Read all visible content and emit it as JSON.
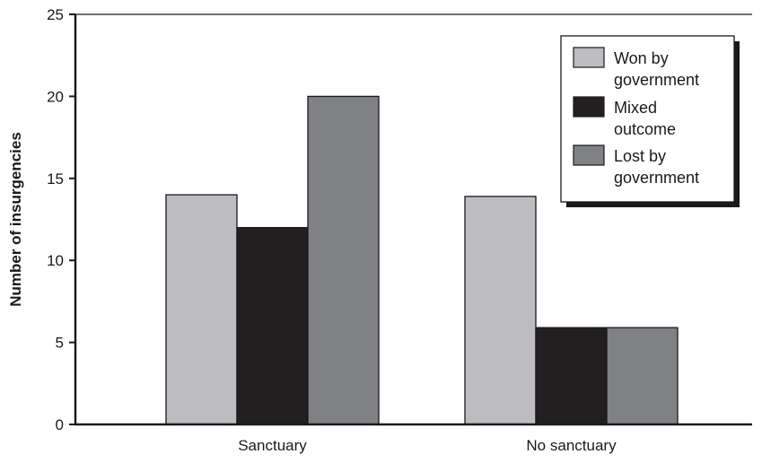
{
  "chart_data": {
    "type": "bar",
    "title": "",
    "xlabel": "",
    "ylabel": "Number of insurgencies",
    "ylim": [
      0,
      25
    ],
    "yticks": [
      0,
      5,
      10,
      15,
      20,
      25
    ],
    "grid": false,
    "legend_position": "top-right",
    "categories": [
      "Sanctuary",
      "No sanctuary"
    ],
    "series": [
      {
        "name": "Won by government",
        "label_lines": [
          "Won by",
          "government"
        ],
        "color": "#bdbdc1",
        "values": [
          14,
          13.9
        ]
      },
      {
        "name": "Mixed outcome",
        "label_lines": [
          "Mixed",
          "outcome"
        ],
        "color": "#231f20",
        "values": [
          12,
          5.9
        ]
      },
      {
        "name": "Lost by government",
        "label_lines": [
          "Lost by",
          "government"
        ],
        "color": "#808184",
        "values": [
          20,
          5.9
        ]
      }
    ]
  }
}
